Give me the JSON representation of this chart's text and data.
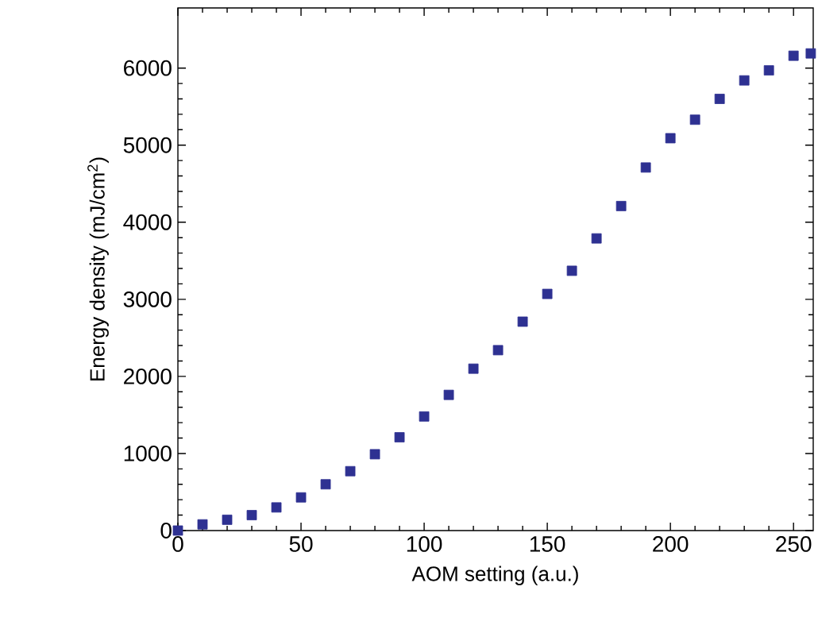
{
  "chart_data": {
    "type": "scatter",
    "xlabel": "AOM setting (a.u.)",
    "ylabel": "Energy density (mJ/cm$^{2}$)",
    "x": [
      0,
      10,
      20,
      30,
      40,
      50,
      60,
      70,
      80,
      90,
      100,
      110,
      120,
      130,
      140,
      150,
      160,
      170,
      180,
      190,
      200,
      210,
      220,
      230,
      240,
      250,
      257
    ],
    "values": [
      0,
      80,
      140,
      200,
      300,
      430,
      600,
      770,
      990,
      1210,
      1480,
      1760,
      2100,
      2340,
      2710,
      3070,
      3370,
      3790,
      4210,
      4710,
      5090,
      5330,
      5600,
      5840,
      5970,
      6160,
      6190
    ],
    "color": "#2e3192",
    "marker": "square",
    "xlim": [
      0,
      258
    ],
    "ylim": [
      0,
      6780
    ],
    "xticks": [
      0,
      50,
      100,
      150,
      200,
      250
    ],
    "yticks": [
      0,
      1000,
      2000,
      3000,
      4000,
      5000,
      6000
    ]
  }
}
